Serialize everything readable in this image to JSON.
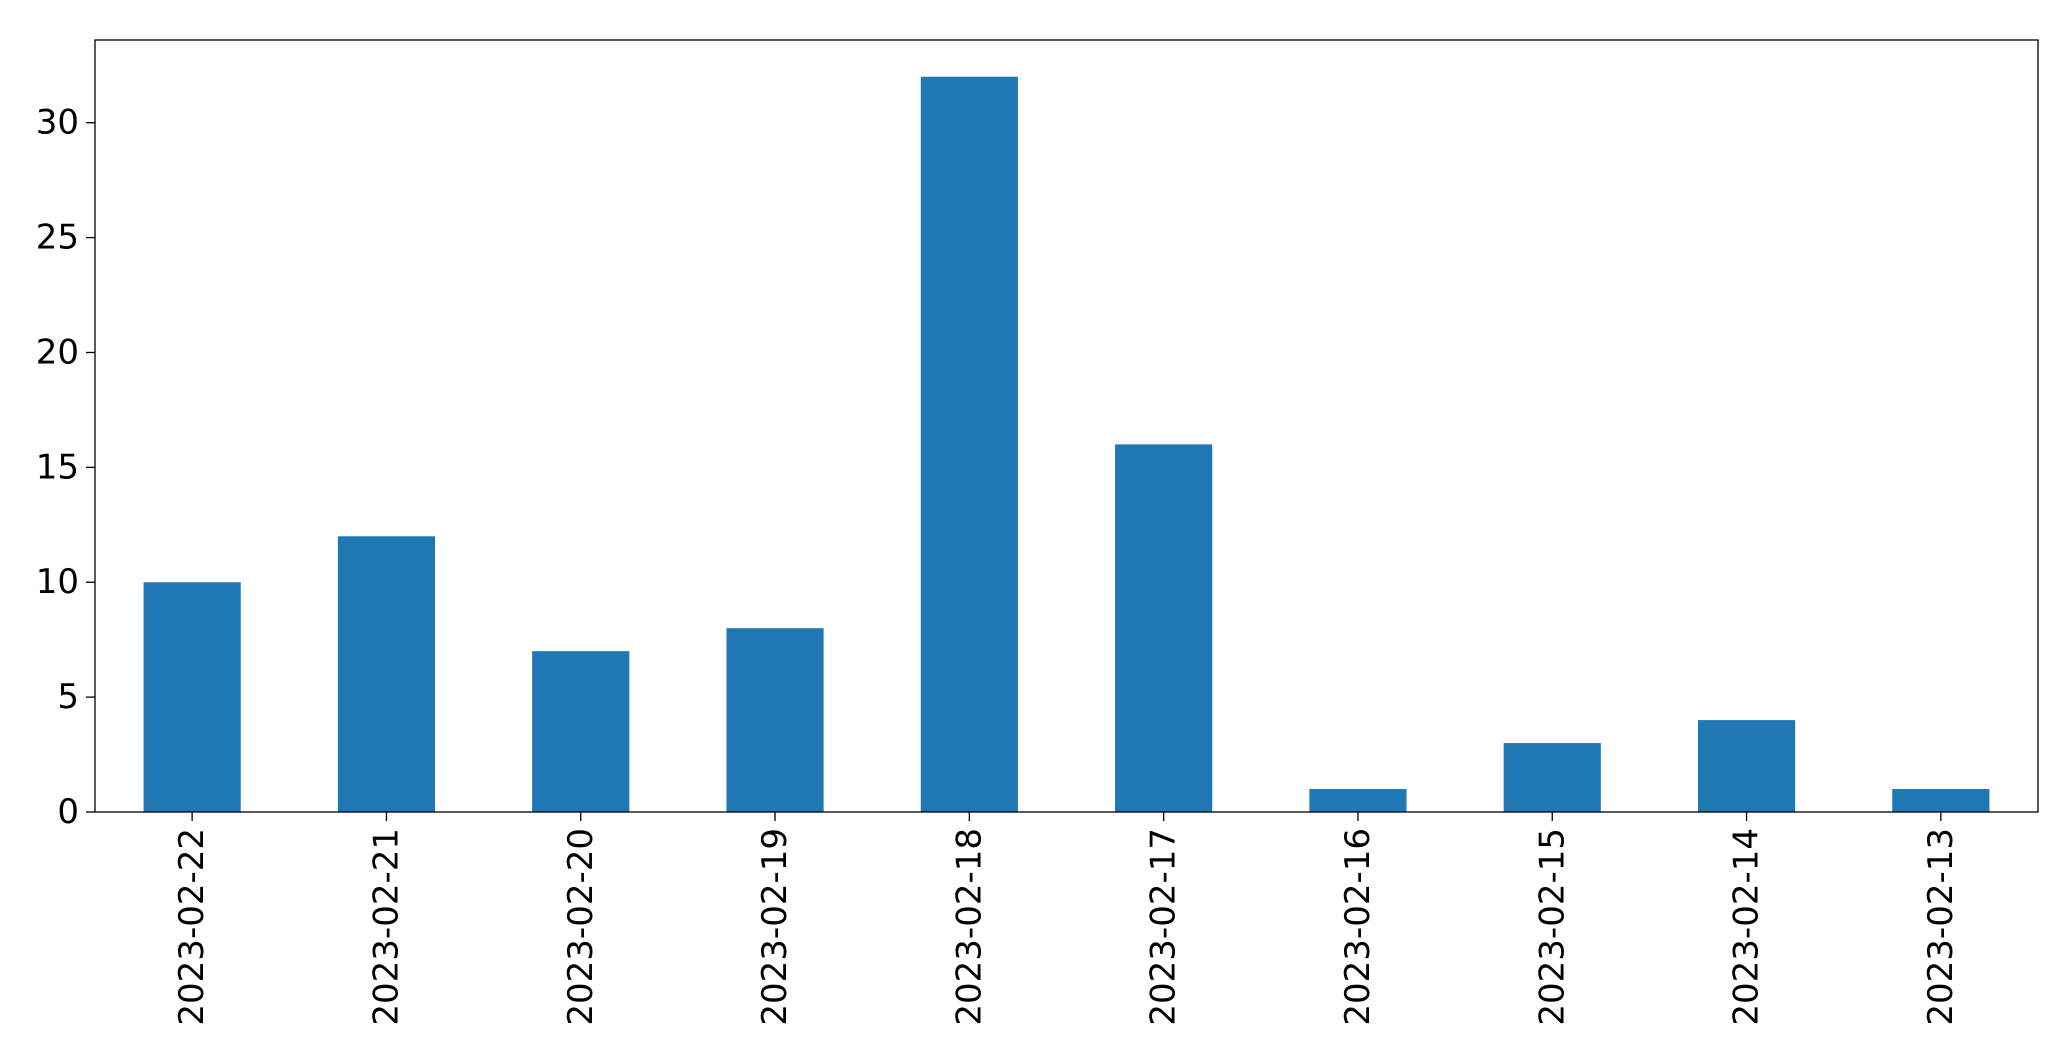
{
  "chart_data": {
    "type": "bar",
    "title": "",
    "xlabel": "",
    "ylabel": "",
    "categories": [
      "2023-02-22",
      "2023-02-21",
      "2023-02-20",
      "2023-02-19",
      "2023-02-18",
      "2023-02-17",
      "2023-02-16",
      "2023-02-15",
      "2023-02-14",
      "2023-02-13"
    ],
    "values": [
      10,
      12,
      7,
      8,
      32,
      16,
      1,
      3,
      4,
      1
    ],
    "ylim": [
      0,
      33.6
    ],
    "yticks": [
      0,
      5,
      10,
      15,
      20,
      25,
      30
    ],
    "bar_color": "#1f77b4",
    "grid": false,
    "legend": "none"
  }
}
